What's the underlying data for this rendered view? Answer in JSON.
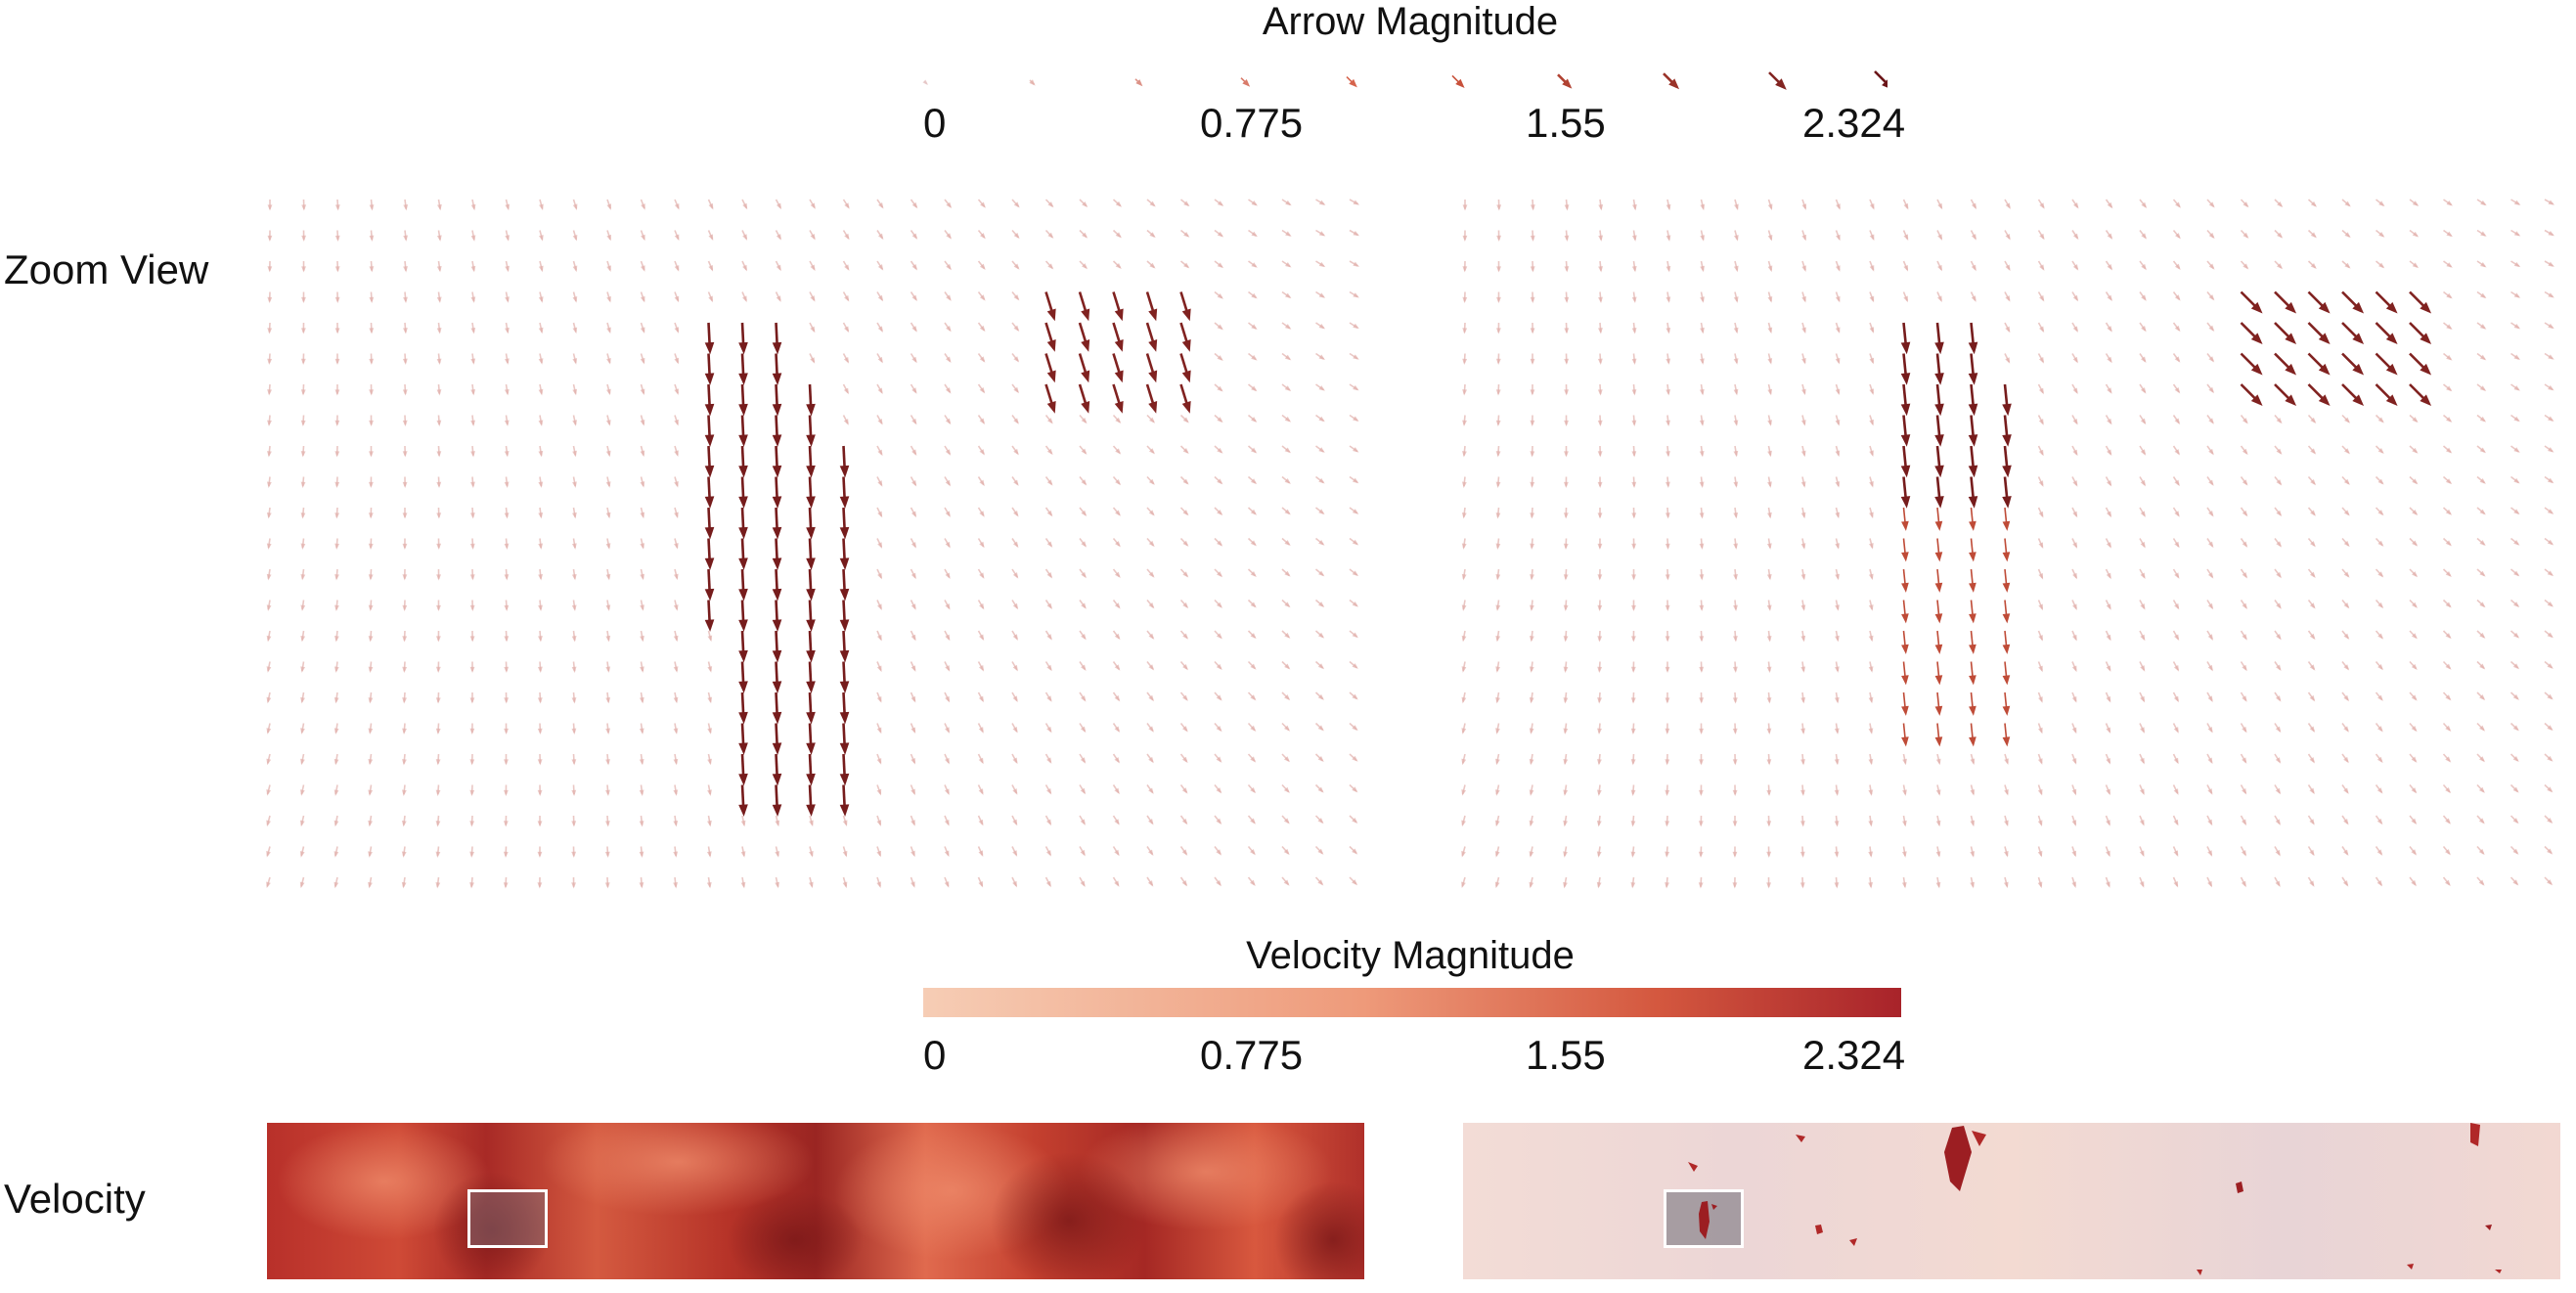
{
  "arrow_legend": {
    "title": "Arrow Magnitude",
    "ticks": [
      "0",
      "0.775",
      "1.55",
      "2.324"
    ]
  },
  "velocity_legend": {
    "title": "Velocity Magnitude",
    "ticks": [
      "0",
      "0.775",
      "1.55",
      "2.324"
    ],
    "color_low": "#f6cdb5",
    "color_high": "#a8232a"
  },
  "rows": {
    "zoom_view": "Zoom View",
    "velocity": "Velocity"
  },
  "scale": {
    "min": 0,
    "max": 2.324
  },
  "colors": {
    "arrow_dark": "#6b1518",
    "arrow_mid": "#d4583f",
    "arrow_faint": "#e3c0c0",
    "inset_border": "#ffffff"
  }
}
